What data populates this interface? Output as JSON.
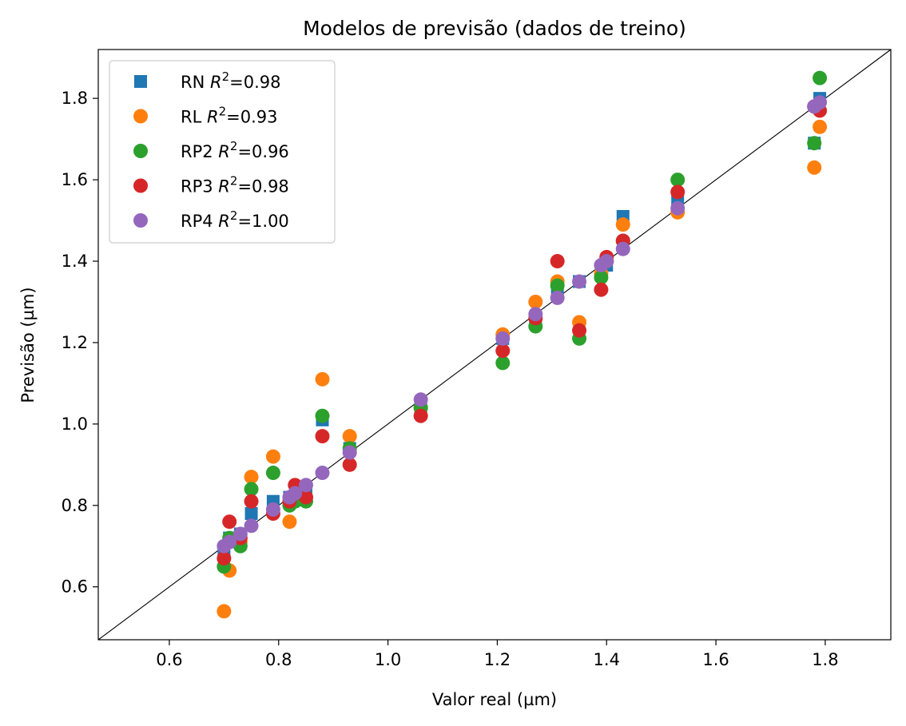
{
  "chart_data": {
    "type": "scatter",
    "title": "Modelos de previsão (dados de treino)",
    "xlabel": "Valor real (µm)",
    "ylabel": "Previsão (µm)",
    "xlim": [
      0.47,
      1.92
    ],
    "ylim": [
      0.47,
      1.92
    ],
    "xticks": [
      "0.6",
      "0.8",
      "1.0",
      "1.2",
      "1.4",
      "1.6",
      "1.8"
    ],
    "yticks": [
      "0.6",
      "0.8",
      "1.0",
      "1.2",
      "1.4",
      "1.6",
      "1.8"
    ],
    "grid": false,
    "legend_position": "top-left",
    "reference_line": "y = x",
    "series": [
      {
        "name": "RN",
        "r2_label": "=0.98",
        "marker": "square",
        "color": "#1f77b4",
        "points": [
          [
            0.7,
            0.68
          ],
          [
            0.71,
            0.72
          ],
          [
            0.73,
            0.73
          ],
          [
            0.75,
            0.78
          ],
          [
            0.79,
            0.81
          ],
          [
            0.82,
            0.82
          ],
          [
            0.83,
            0.82
          ],
          [
            0.85,
            0.83
          ],
          [
            0.88,
            1.01
          ],
          [
            0.93,
            0.94
          ],
          [
            1.06,
            1.04
          ],
          [
            1.21,
            1.21
          ],
          [
            1.27,
            1.26
          ],
          [
            1.31,
            1.32
          ],
          [
            1.35,
            1.35
          ],
          [
            1.39,
            1.38
          ],
          [
            1.4,
            1.39
          ],
          [
            1.43,
            1.51
          ],
          [
            1.53,
            1.55
          ],
          [
            1.78,
            1.69
          ],
          [
            1.79,
            1.8
          ]
        ]
      },
      {
        "name": "RL",
        "r2_label": "=0.93",
        "marker": "circle",
        "color": "#ff7f0e",
        "points": [
          [
            0.7,
            0.54
          ],
          [
            0.71,
            0.64
          ],
          [
            0.73,
            0.71
          ],
          [
            0.75,
            0.87
          ],
          [
            0.79,
            0.92
          ],
          [
            0.82,
            0.76
          ],
          [
            0.83,
            0.82
          ],
          [
            0.85,
            0.82
          ],
          [
            0.88,
            1.11
          ],
          [
            0.93,
            0.97
          ],
          [
            1.06,
            1.04
          ],
          [
            1.21,
            1.22
          ],
          [
            1.27,
            1.3
          ],
          [
            1.31,
            1.35
          ],
          [
            1.35,
            1.25
          ],
          [
            1.39,
            1.37
          ],
          [
            1.4,
            1.4
          ],
          [
            1.43,
            1.49
          ],
          [
            1.53,
            1.52
          ],
          [
            1.78,
            1.63
          ],
          [
            1.79,
            1.73
          ]
        ]
      },
      {
        "name": "RP2",
        "r2_label": "=0.96",
        "marker": "circle",
        "color": "#2ca02c",
        "points": [
          [
            0.7,
            0.65
          ],
          [
            0.71,
            0.72
          ],
          [
            0.73,
            0.7
          ],
          [
            0.75,
            0.84
          ],
          [
            0.79,
            0.88
          ],
          [
            0.82,
            0.8
          ],
          [
            0.83,
            0.81
          ],
          [
            0.85,
            0.81
          ],
          [
            0.88,
            1.02
          ],
          [
            0.93,
            0.94
          ],
          [
            1.06,
            1.04
          ],
          [
            1.21,
            1.15
          ],
          [
            1.27,
            1.24
          ],
          [
            1.31,
            1.34
          ],
          [
            1.35,
            1.21
          ],
          [
            1.39,
            1.36
          ],
          [
            1.4,
            1.4
          ],
          [
            1.43,
            1.45
          ],
          [
            1.53,
            1.6
          ],
          [
            1.78,
            1.69
          ],
          [
            1.79,
            1.85
          ]
        ]
      },
      {
        "name": "RP3",
        "r2_label": "=0.98",
        "marker": "circle",
        "color": "#d62728",
        "points": [
          [
            0.7,
            0.67
          ],
          [
            0.71,
            0.76
          ],
          [
            0.73,
            0.72
          ],
          [
            0.75,
            0.81
          ],
          [
            0.79,
            0.78
          ],
          [
            0.82,
            0.81
          ],
          [
            0.83,
            0.85
          ],
          [
            0.85,
            0.82
          ],
          [
            0.88,
            0.97
          ],
          [
            0.93,
            0.9
          ],
          [
            1.06,
            1.02
          ],
          [
            1.21,
            1.18
          ],
          [
            1.27,
            1.26
          ],
          [
            1.31,
            1.4
          ],
          [
            1.35,
            1.23
          ],
          [
            1.39,
            1.33
          ],
          [
            1.4,
            1.41
          ],
          [
            1.43,
            1.45
          ],
          [
            1.53,
            1.57
          ],
          [
            1.78,
            1.78
          ],
          [
            1.79,
            1.77
          ]
        ]
      },
      {
        "name": "RP4",
        "r2_label": "=1.00",
        "marker": "circle",
        "color": "#9467bd",
        "points": [
          [
            0.7,
            0.7
          ],
          [
            0.71,
            0.71
          ],
          [
            0.73,
            0.73
          ],
          [
            0.75,
            0.75
          ],
          [
            0.79,
            0.79
          ],
          [
            0.82,
            0.82
          ],
          [
            0.83,
            0.83
          ],
          [
            0.85,
            0.85
          ],
          [
            0.88,
            0.88
          ],
          [
            0.93,
            0.93
          ],
          [
            1.06,
            1.06
          ],
          [
            1.21,
            1.21
          ],
          [
            1.27,
            1.27
          ],
          [
            1.31,
            1.31
          ],
          [
            1.35,
            1.35
          ],
          [
            1.39,
            1.39
          ],
          [
            1.4,
            1.4
          ],
          [
            1.43,
            1.43
          ],
          [
            1.53,
            1.53
          ],
          [
            1.78,
            1.78
          ],
          [
            1.79,
            1.79
          ]
        ]
      }
    ]
  }
}
